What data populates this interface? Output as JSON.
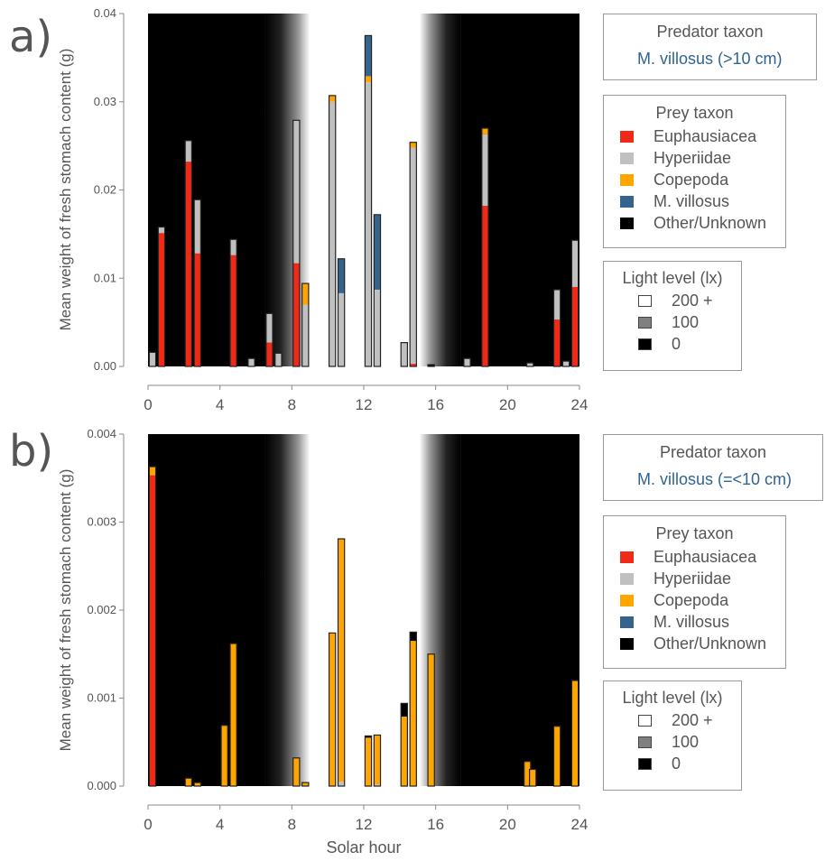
{
  "chart_data": [
    {
      "type": "bar",
      "stacked": true,
      "panel_label": "a)",
      "title": "",
      "xlabel": "",
      "ylabel": "Mean weight of fresh stomach content (g)",
      "xlim": [
        0,
        24
      ],
      "ylim": [
        0,
        0.04
      ],
      "xticks": [
        "0",
        "4",
        "8",
        "12",
        "16",
        "20",
        "24"
      ],
      "yticks": [
        "0.00",
        "0.01",
        "0.02",
        "0.03",
        "0.04"
      ],
      "light_background": {
        "dark_until": 6.5,
        "light_from": 9.0,
        "light_until": 15.1,
        "dark_from": 17.4
      },
      "predator_legend": {
        "title": "Predator taxon",
        "value": "M. villosus (>10 cm)"
      },
      "prey_legend": {
        "title": "Prey taxon",
        "items": [
          {
            "label": "Euphausiacea",
            "color": "#f02a18"
          },
          {
            "label": "Hyperiidae",
            "color": "#c0c0c0"
          },
          {
            "label": "Copepoda",
            "color": "#ffa500"
          },
          {
            "label": "M. villosus",
            "color": "#34648e"
          },
          {
            "label": "Other/Unknown",
            "color": "#000000"
          }
        ]
      },
      "light_legend": {
        "title": "Light level (lx)",
        "items": [
          {
            "label": "200 +",
            "color": "#ffffff"
          },
          {
            "label": "100",
            "color": "#808080"
          },
          {
            "label": "0",
            "color": "#000000"
          }
        ]
      },
      "series_order": [
        "Euphausiacea",
        "Hyperiidae",
        "Copepoda",
        "M. villosus",
        "Other/Unknown"
      ],
      "bars": [
        {
          "hour": 0.25,
          "Euphausiacea": 0,
          "Hyperiidae": 0.0016,
          "Copepoda": 0,
          "M. villosus": 0,
          "Other/Unknown": 0
        },
        {
          "hour": 0.75,
          "Euphausiacea": 0.0151,
          "Hyperiidae": 0.0007,
          "Copepoda": 0,
          "M. villosus": 0,
          "Other/Unknown": 0
        },
        {
          "hour": 2.25,
          "Euphausiacea": 0.0232,
          "Hyperiidae": 0.0024,
          "Copepoda": 0,
          "M. villosus": 0,
          "Other/Unknown": 0
        },
        {
          "hour": 2.75,
          "Euphausiacea": 0.0128,
          "Hyperiidae": 0.0061,
          "Copepoda": 0,
          "M. villosus": 0,
          "Other/Unknown": 0
        },
        {
          "hour": 4.75,
          "Euphausiacea": 0.0126,
          "Hyperiidae": 0.0018,
          "Copepoda": 0,
          "M. villosus": 0,
          "Other/Unknown": 0
        },
        {
          "hour": 5.75,
          "Euphausiacea": 0,
          "Hyperiidae": 0.0009,
          "Copepoda": 0,
          "M. villosus": 0,
          "Other/Unknown": 0
        },
        {
          "hour": 6.75,
          "Euphausiacea": 0.0027,
          "Hyperiidae": 0.0033,
          "Copepoda": 0,
          "M. villosus": 0,
          "Other/Unknown": 0
        },
        {
          "hour": 7.25,
          "Euphausiacea": 0,
          "Hyperiidae": 0.0015,
          "Copepoda": 0,
          "M. villosus": 0,
          "Other/Unknown": 0
        },
        {
          "hour": 8.25,
          "Euphausiacea": 0.0117,
          "Hyperiidae": 0.0162,
          "Copepoda": 0,
          "M. villosus": 0,
          "Other/Unknown": 0
        },
        {
          "hour": 8.75,
          "Euphausiacea": 0,
          "Hyperiidae": 0.007,
          "Copepoda": 0.0024,
          "M. villosus": 0,
          "Other/Unknown": 0
        },
        {
          "hour": 10.25,
          "Euphausiacea": 0,
          "Hyperiidae": 0.03,
          "Copepoda": 0.0007,
          "M. villosus": 0,
          "Other/Unknown": 0
        },
        {
          "hour": 10.75,
          "Euphausiacea": 0,
          "Hyperiidae": 0.0083,
          "Copepoda": 0,
          "M. villosus": 0.0039,
          "Other/Unknown": 0
        },
        {
          "hour": 12.25,
          "Euphausiacea": 0,
          "Hyperiidae": 0.0322,
          "Copepoda": 0.0007,
          "M. villosus": 0.0046,
          "Other/Unknown": 0
        },
        {
          "hour": 12.75,
          "Euphausiacea": 0,
          "Hyperiidae": 0.0087,
          "Copepoda": 0,
          "M. villosus": 0.0085,
          "Other/Unknown": 0
        },
        {
          "hour": 14.25,
          "Euphausiacea": 0,
          "Hyperiidae": 0.0027,
          "Copepoda": 0,
          "M. villosus": 0,
          "Other/Unknown": 0
        },
        {
          "hour": 14.75,
          "Euphausiacea": 0.0003,
          "Hyperiidae": 0.0245,
          "Copepoda": 0.0006,
          "M. villosus": 0,
          "Other/Unknown": 0
        },
        {
          "hour": 15.75,
          "Euphausiacea": 0,
          "Hyperiidae": 0,
          "Copepoda": 0,
          "M. villosus": 0,
          "Other/Unknown": 0.0002
        },
        {
          "hour": 17.75,
          "Euphausiacea": 0,
          "Hyperiidae": 0.0009,
          "Copepoda": 0,
          "M. villosus": 0,
          "Other/Unknown": 0
        },
        {
          "hour": 18.75,
          "Euphausiacea": 0.0182,
          "Hyperiidae": 0.0081,
          "Copepoda": 0.0007,
          "M. villosus": 0,
          "Other/Unknown": 0
        },
        {
          "hour": 21.25,
          "Euphausiacea": 0,
          "Hyperiidae": 0.0004,
          "Copepoda": 0,
          "M. villosus": 0,
          "Other/Unknown": 0
        },
        {
          "hour": 22.75,
          "Euphausiacea": 0.0053,
          "Hyperiidae": 0.0034,
          "Copepoda": 0,
          "M. villosus": 0,
          "Other/Unknown": 0
        },
        {
          "hour": 23.25,
          "Euphausiacea": 0,
          "Hyperiidae": 0.0006,
          "Copepoda": 0,
          "M. villosus": 0,
          "Other/Unknown": 0
        },
        {
          "hour": 23.75,
          "Euphausiacea": 0.009,
          "Hyperiidae": 0.0053,
          "Copepoda": 0,
          "M. villosus": 0,
          "Other/Unknown": 0
        }
      ]
    },
    {
      "type": "bar",
      "stacked": true,
      "panel_label": "b)",
      "title": "",
      "xlabel": "Solar hour",
      "ylabel": "Mean weight of fresh stomach content (g)",
      "xlim": [
        0,
        24
      ],
      "ylim": [
        0,
        0.004
      ],
      "xticks": [
        "0",
        "4",
        "8",
        "12",
        "16",
        "20",
        "24"
      ],
      "yticks": [
        "0.000",
        "0.001",
        "0.002",
        "0.003",
        "0.004"
      ],
      "light_background": {
        "dark_until": 6.5,
        "light_from": 9.0,
        "light_until": 15.1,
        "dark_from": 17.4
      },
      "predator_legend": {
        "title": "Predator taxon",
        "value": "M. villosus (=<10 cm)"
      },
      "prey_legend": {
        "title": "Prey taxon",
        "items": [
          {
            "label": "Euphausiacea",
            "color": "#f02a18"
          },
          {
            "label": "Hyperiidae",
            "color": "#c0c0c0"
          },
          {
            "label": "Copepoda",
            "color": "#ffa500"
          },
          {
            "label": "M. villosus",
            "color": "#34648e"
          },
          {
            "label": "Other/Unknown",
            "color": "#000000"
          }
        ]
      },
      "light_legend": {
        "title": "Light level (lx)",
        "items": [
          {
            "label": "200 +",
            "color": "#ffffff"
          },
          {
            "label": "100",
            "color": "#808080"
          },
          {
            "label": "0",
            "color": "#000000"
          }
        ]
      },
      "series_order": [
        "Euphausiacea",
        "Hyperiidae",
        "Copepoda",
        "M. villosus",
        "Other/Unknown"
      ],
      "bars": [
        {
          "hour": 0.25,
          "Euphausiacea": 0.00353,
          "Hyperiidae": 0,
          "Copepoda": 0.0001,
          "M. villosus": 0,
          "Other/Unknown": 0
        },
        {
          "hour": 2.25,
          "Euphausiacea": 0,
          "Hyperiidae": 0,
          "Copepoda": 9e-05,
          "M. villosus": 0,
          "Other/Unknown": 0
        },
        {
          "hour": 2.75,
          "Euphausiacea": 0,
          "Hyperiidae": 0,
          "Copepoda": 4e-05,
          "M. villosus": 0,
          "Other/Unknown": 0
        },
        {
          "hour": 4.25,
          "Euphausiacea": 0,
          "Hyperiidae": 0,
          "Copepoda": 0.00069,
          "M. villosus": 0,
          "Other/Unknown": 0
        },
        {
          "hour": 4.75,
          "Euphausiacea": 0,
          "Hyperiidae": 0,
          "Copepoda": 0.00162,
          "M. villosus": 0,
          "Other/Unknown": 0
        },
        {
          "hour": 8.25,
          "Euphausiacea": 0,
          "Hyperiidae": 0,
          "Copepoda": 0.00032,
          "M. villosus": 0,
          "Other/Unknown": 0
        },
        {
          "hour": 8.75,
          "Euphausiacea": 0,
          "Hyperiidae": 0,
          "Copepoda": 4e-05,
          "M. villosus": 0,
          "Other/Unknown": 0
        },
        {
          "hour": 10.25,
          "Euphausiacea": 0,
          "Hyperiidae": 0,
          "Copepoda": 0.00174,
          "M. villosus": 0,
          "Other/Unknown": 0
        },
        {
          "hour": 10.75,
          "Euphausiacea": 0,
          "Hyperiidae": 5e-05,
          "Copepoda": 0.00276,
          "M. villosus": 0,
          "Other/Unknown": 0
        },
        {
          "hour": 12.25,
          "Euphausiacea": 0,
          "Hyperiidae": 0,
          "Copepoda": 0.00055,
          "M. villosus": 0,
          "Other/Unknown": 2e-05
        },
        {
          "hour": 12.75,
          "Euphausiacea": 0,
          "Hyperiidae": 2e-05,
          "Copepoda": 0.00056,
          "M. villosus": 0,
          "Other/Unknown": 0
        },
        {
          "hour": 14.25,
          "Euphausiacea": 0,
          "Hyperiidae": 0,
          "Copepoda": 0.00079,
          "M. villosus": 0,
          "Other/Unknown": 0.00015
        },
        {
          "hour": 14.75,
          "Euphausiacea": 0,
          "Hyperiidae": 0,
          "Copepoda": 0.00165,
          "M. villosus": 0,
          "Other/Unknown": 0.0001
        },
        {
          "hour": 15.75,
          "Euphausiacea": 0,
          "Hyperiidae": 0,
          "Copepoda": 0.0015,
          "M. villosus": 0,
          "Other/Unknown": 0
        },
        {
          "hour": 21.1,
          "Euphausiacea": 0,
          "Hyperiidae": 0,
          "Copepoda": 0.00028,
          "M. villosus": 0,
          "Other/Unknown": 0
        },
        {
          "hour": 21.4,
          "Euphausiacea": 0,
          "Hyperiidae": 0,
          "Copepoda": 0.00019,
          "M. villosus": 0,
          "Other/Unknown": 0
        },
        {
          "hour": 22.75,
          "Euphausiacea": 0,
          "Hyperiidae": 0,
          "Copepoda": 0.00068,
          "M. villosus": 0,
          "Other/Unknown": 0
        },
        {
          "hour": 23.75,
          "Euphausiacea": 0,
          "Hyperiidae": 0,
          "Copepoda": 0.0012,
          "M. villosus": 0,
          "Other/Unknown": 0
        }
      ]
    }
  ]
}
